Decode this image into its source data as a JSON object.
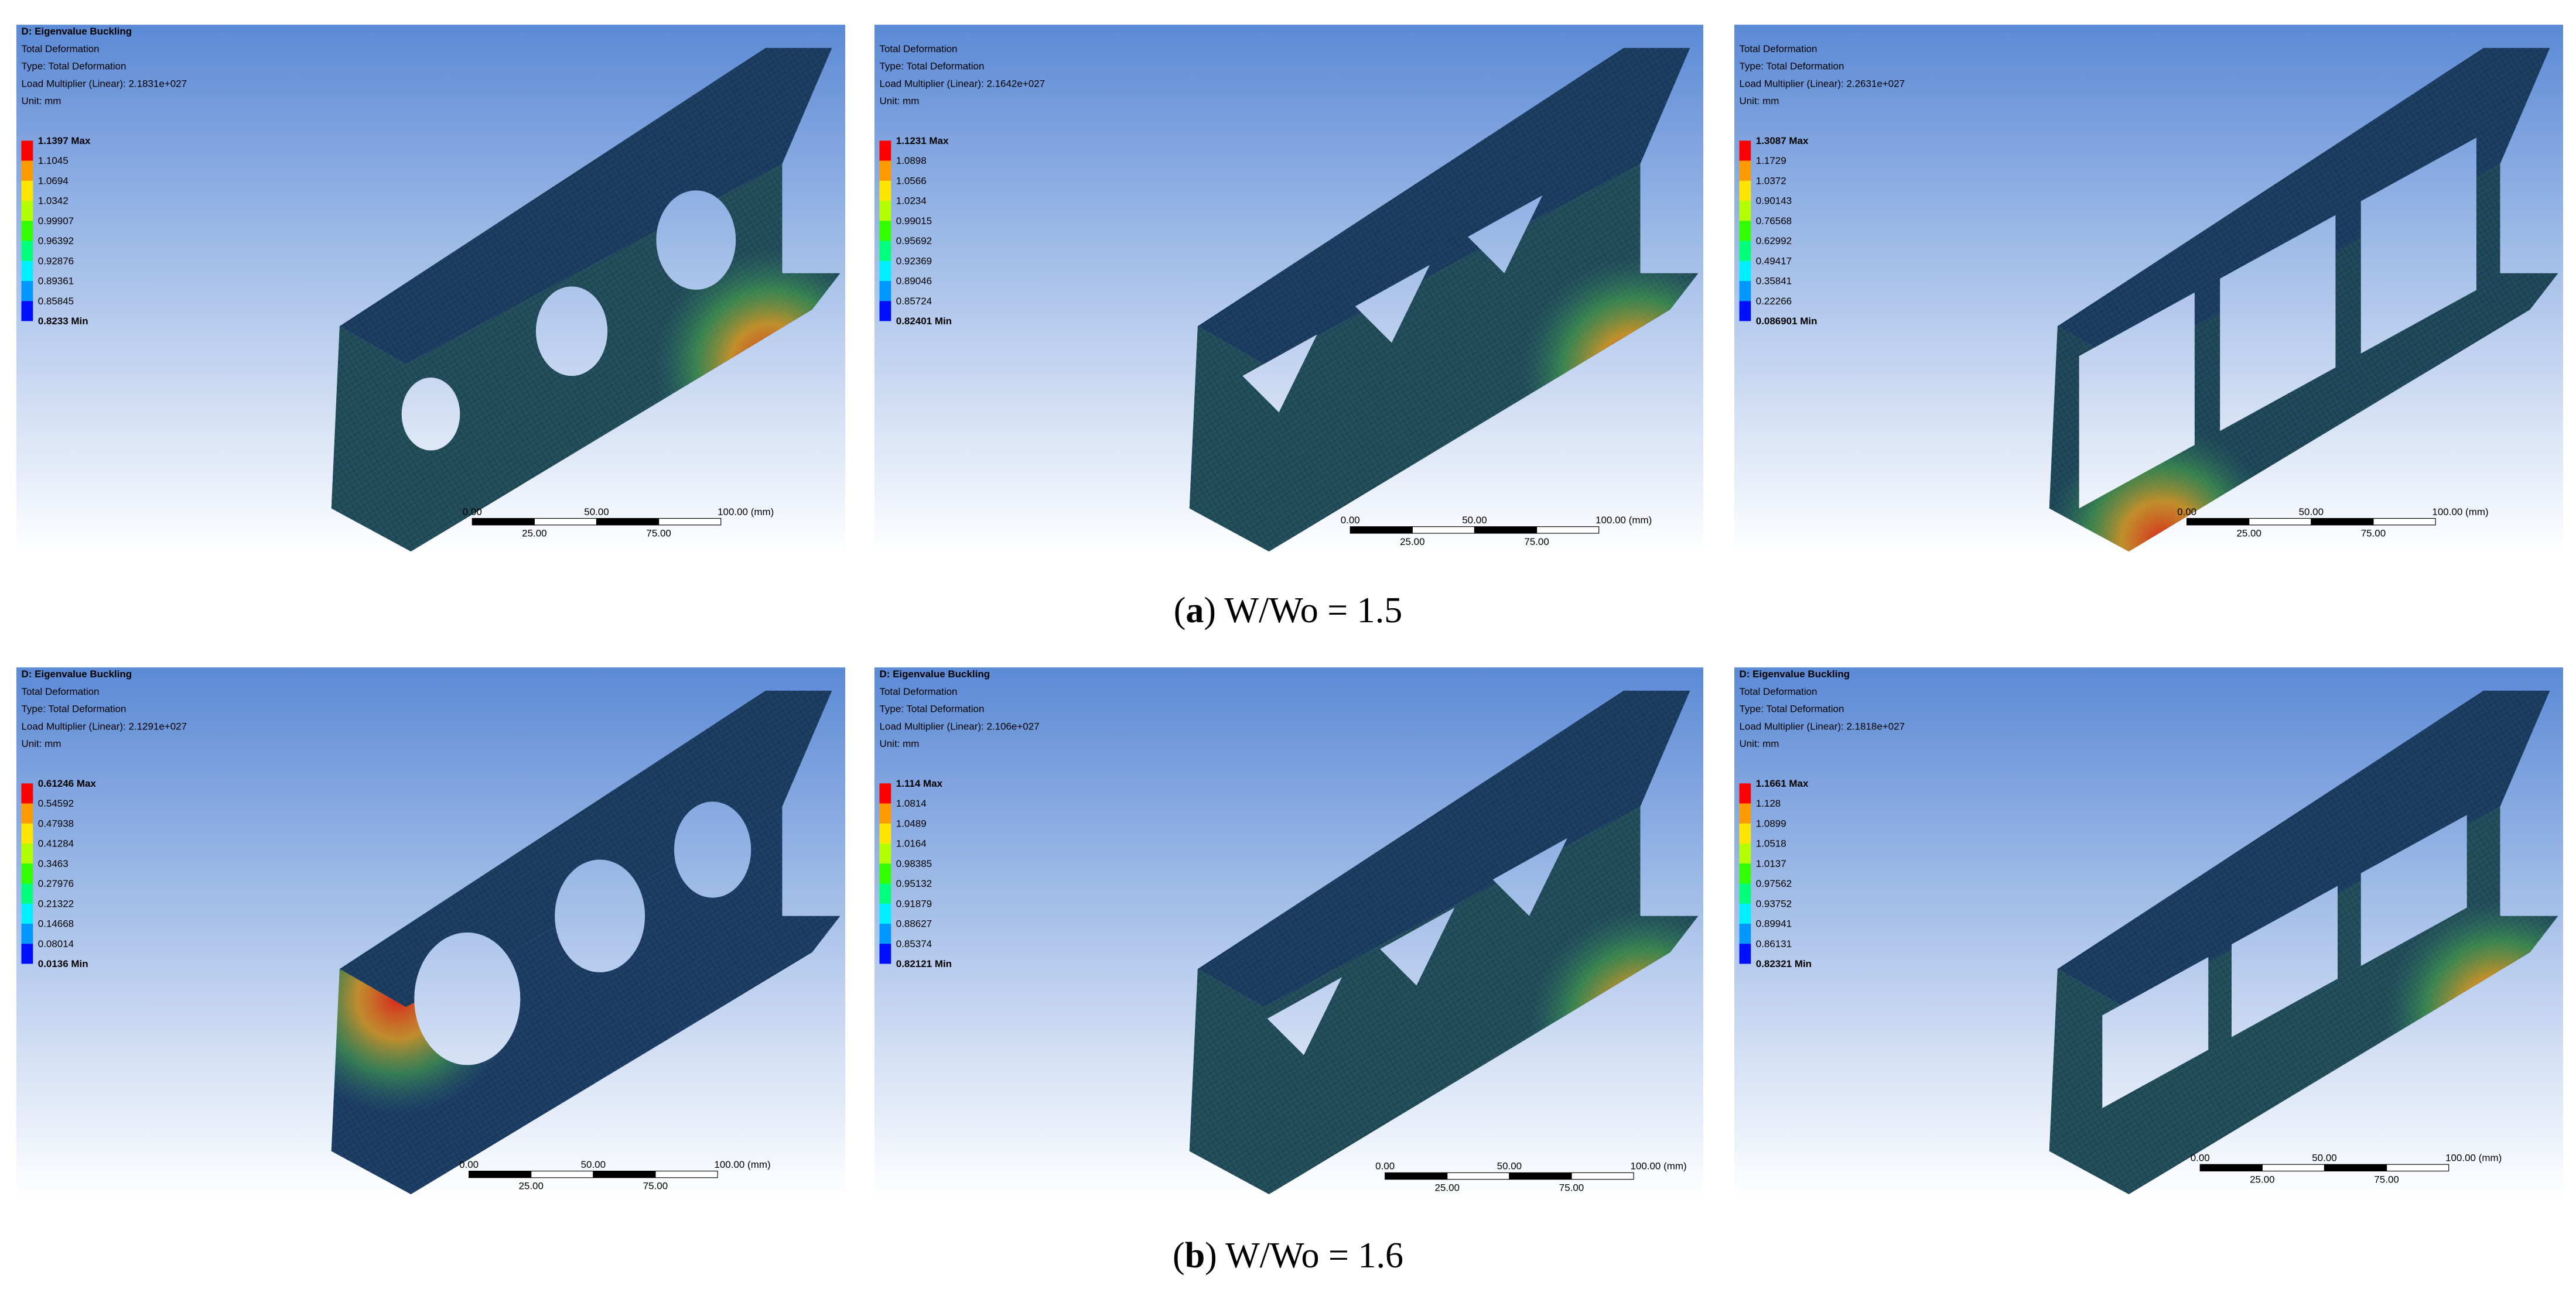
{
  "panels": [
    {
      "header": [
        "D: Eigenvalue Buckling",
        "Total Deformation",
        "Type: Total Deformation",
        "Load Multiplier (Linear): 2.1831e+027",
        "Unit: mm"
      ],
      "legend": [
        "1.1397 Max",
        "1.1045",
        "1.0694",
        "1.0342",
        "0.99907",
        "0.96392",
        "0.92876",
        "0.89361",
        "0.85845",
        "0.8233 Min"
      ],
      "scale": {
        "top": [
          "0.00",
          "50.00",
          "100.00 (mm)"
        ],
        "bottom": [
          "25.00",
          "75.00"
        ]
      }
    },
    {
      "header": [
        "Total Deformation",
        "Type: Total Deformation",
        "Load Multiplier (Linear): 2.1642e+027",
        "Unit: mm"
      ],
      "legend": [
        "1.1231 Max",
        "1.0898",
        "1.0566",
        "1.0234",
        "0.99015",
        "0.95692",
        "0.92369",
        "0.89046",
        "0.85724",
        "0.82401 Min"
      ],
      "scale": {
        "top": [
          "0.00",
          "50.00",
          "100.00 (mm)"
        ],
        "bottom": [
          "25.00",
          "75.00"
        ]
      }
    },
    {
      "header": [
        "Total Deformation",
        "Type: Total Deformation",
        "Load Multiplier (Linear): 2.2631e+027",
        "Unit: mm"
      ],
      "legend": [
        "1.3087 Max",
        "1.1729",
        "1.0372",
        "0.90143",
        "0.76568",
        "0.62992",
        "0.49417",
        "0.35841",
        "0.22266",
        "0.086901 Min"
      ],
      "scale": {
        "top": [
          "0.00",
          "50.00",
          "100.00 (mm)"
        ],
        "bottom": [
          "25.00",
          "75.00"
        ]
      }
    },
    {
      "header": [
        "D: Eigenvalue Buckling",
        "Total Deformation",
        "Type: Total Deformation",
        "Load Multiplier (Linear): 2.1291e+027",
        "Unit: mm"
      ],
      "legend": [
        "0.61246 Max",
        "0.54592",
        "0.47938",
        "0.41284",
        "0.3463",
        "0.27976",
        "0.21322",
        "0.14668",
        "0.08014",
        "0.0136 Min"
      ],
      "scale": {
        "top": [
          "0.00",
          "50.00",
          "100.00 (mm)"
        ],
        "bottom": [
          "25.00",
          "75.00"
        ]
      }
    },
    {
      "header": [
        "D: Eigenvalue Buckling",
        "Total Deformation",
        "Type: Total Deformation",
        "Load Multiplier (Linear): 2.106e+027",
        "Unit: mm"
      ],
      "legend": [
        "1.114 Max",
        "1.0814",
        "1.0489",
        "1.0164",
        "0.98385",
        "0.95132",
        "0.91879",
        "0.88627",
        "0.85374",
        "0.82121 Min"
      ],
      "scale": {
        "top": [
          "0.00",
          "50.00",
          "100.00 (mm)"
        ],
        "bottom": [
          "25.00",
          "75.00"
        ]
      }
    },
    {
      "header": [
        "D: Eigenvalue Buckling",
        "Total Deformation",
        "Type: Total Deformation",
        "Load Multiplier (Linear): 2.1818e+027",
        "Unit: mm"
      ],
      "legend": [
        "1.1661 Max",
        "1.128",
        "1.0899",
        "1.0518",
        "1.0137",
        "0.97562",
        "0.93752",
        "0.89941",
        "0.86131",
        "0.82321 Min"
      ],
      "scale": {
        "top": [
          "0.00",
          "50.00",
          "100.00 (mm)"
        ],
        "bottom": [
          "25.00",
          "75.00"
        ]
      }
    }
  ],
  "captions": [
    [
      "(",
      "a",
      ") W/Wo = 1.5"
    ],
    [
      "(",
      "b",
      ") W/Wo = 1.6"
    ]
  ]
}
